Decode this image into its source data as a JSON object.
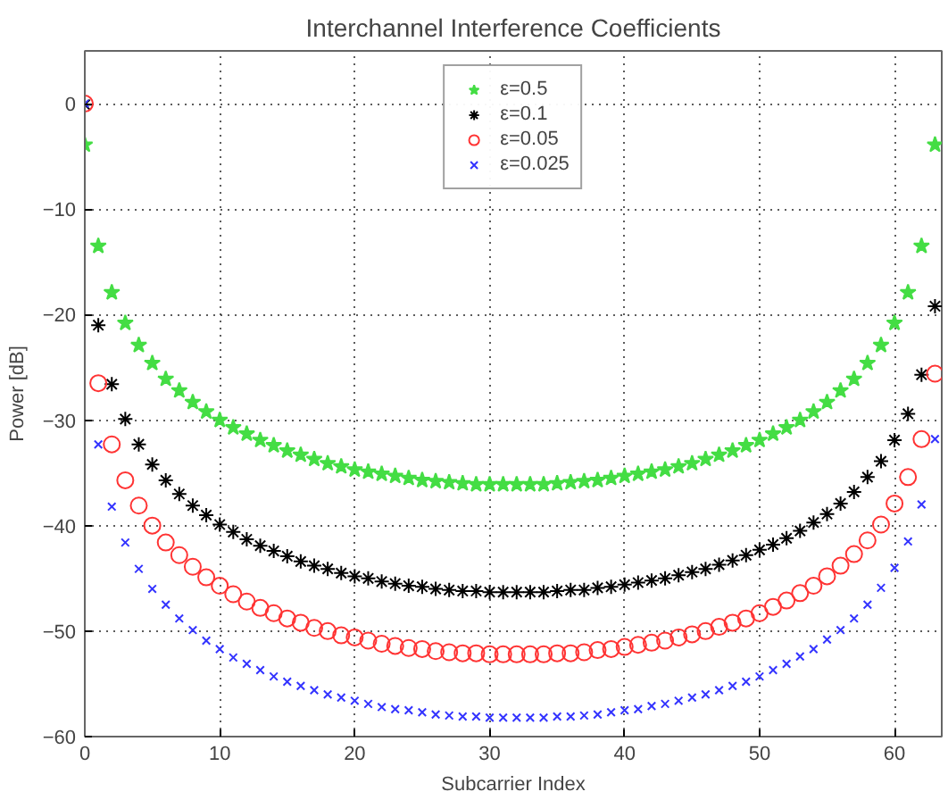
{
  "chart_data": {
    "type": "scatter",
    "title": "Interchannel Interference Coefficients",
    "xlabel": "Subcarrier Index",
    "ylabel": "Power [dB]",
    "x": [
      0,
      1,
      2,
      3,
      4,
      5,
      6,
      7,
      8,
      9,
      10,
      11,
      12,
      13,
      14,
      15,
      16,
      17,
      18,
      19,
      20,
      21,
      22,
      23,
      24,
      25,
      26,
      27,
      28,
      29,
      30,
      31,
      32,
      33,
      34,
      35,
      36,
      37,
      38,
      39,
      40,
      41,
      42,
      43,
      44,
      45,
      46,
      47,
      48,
      49,
      50,
      51,
      52,
      53,
      54,
      55,
      56,
      57,
      58,
      59,
      60,
      61,
      62,
      63
    ],
    "xlim": [
      0,
      63.5
    ],
    "xticks": [
      0,
      10,
      20,
      30,
      40,
      50,
      60
    ],
    "ylim": [
      -60,
      5
    ],
    "yticks": [
      -60,
      -50,
      -40,
      -30,
      -20,
      -10,
      0
    ],
    "grid": true,
    "legend": "top",
    "line_style": "dotted",
    "series": [
      {
        "name": "ε=0.5",
        "color": "#44dd44",
        "marker": "star",
        "values": [
          -3.9,
          -13.5,
          -17.9,
          -20.8,
          -22.9,
          -24.6,
          -26.1,
          -27.2,
          -28.3,
          -29.2,
          -30.0,
          -30.7,
          -31.3,
          -31.9,
          -32.4,
          -32.9,
          -33.3,
          -33.7,
          -34.1,
          -34.4,
          -34.7,
          -34.9,
          -35.1,
          -35.3,
          -35.5,
          -35.7,
          -35.8,
          -35.9,
          -36.0,
          -36.1,
          -36.1,
          -36.1,
          -36.1,
          -36.1,
          -36.1,
          -36.0,
          -35.9,
          -35.8,
          -35.7,
          -35.5,
          -35.3,
          -35.1,
          -34.9,
          -34.7,
          -34.4,
          -34.1,
          -33.7,
          -33.3,
          -32.9,
          -32.4,
          -31.9,
          -31.3,
          -30.7,
          -30.0,
          -29.2,
          -28.3,
          -27.2,
          -26.1,
          -24.6,
          -22.9,
          -20.8,
          -17.9,
          -13.5,
          -3.9
        ]
      },
      {
        "name": "ε=0.1",
        "color": "#000000",
        "marker": "cross",
        "values": [
          -0.1,
          -21.0,
          -26.6,
          -29.9,
          -32.3,
          -34.2,
          -35.7,
          -37.0,
          -38.1,
          -39.0,
          -39.9,
          -40.6,
          -41.3,
          -41.9,
          -42.4,
          -42.9,
          -43.4,
          -43.8,
          -44.1,
          -44.5,
          -44.8,
          -45.0,
          -45.3,
          -45.5,
          -45.7,
          -45.8,
          -46.0,
          -46.1,
          -46.2,
          -46.2,
          -46.3,
          -46.3,
          -46.3,
          -46.3,
          -46.3,
          -46.2,
          -46.1,
          -46.1,
          -45.9,
          -45.8,
          -45.6,
          -45.4,
          -45.2,
          -45.0,
          -44.7,
          -44.4,
          -44.1,
          -43.7,
          -43.3,
          -42.8,
          -42.3,
          -41.8,
          -41.2,
          -40.5,
          -39.7,
          -38.9,
          -37.9,
          -36.8,
          -35.4,
          -33.9,
          -31.9,
          -29.4,
          -25.7,
          -19.2
        ]
      },
      {
        "name": "ε=0.05",
        "color": "#ff3333",
        "marker": "circle",
        "values": [
          0.0,
          -26.5,
          -32.3,
          -35.7,
          -38.1,
          -40.0,
          -41.6,
          -42.8,
          -43.9,
          -44.9,
          -45.7,
          -46.5,
          -47.2,
          -47.8,
          -48.3,
          -48.8,
          -49.2,
          -49.7,
          -50.0,
          -50.4,
          -50.6,
          -50.9,
          -51.2,
          -51.4,
          -51.6,
          -51.7,
          -51.9,
          -52.0,
          -52.1,
          -52.1,
          -52.2,
          -52.2,
          -52.2,
          -52.2,
          -52.2,
          -52.1,
          -52.1,
          -52.0,
          -51.8,
          -51.7,
          -51.5,
          -51.3,
          -51.1,
          -50.9,
          -50.6,
          -50.3,
          -50.0,
          -49.6,
          -49.2,
          -48.8,
          -48.3,
          -47.7,
          -47.1,
          -46.4,
          -45.7,
          -44.8,
          -43.8,
          -42.7,
          -41.4,
          -39.9,
          -37.9,
          -35.4,
          -31.8,
          -25.6
        ]
      },
      {
        "name": "ε=0.025",
        "color": "#3333ff",
        "marker": "cross",
        "values": [
          0.0,
          -32.3,
          -38.2,
          -41.6,
          -44.1,
          -46.0,
          -47.5,
          -48.8,
          -49.9,
          -50.9,
          -51.7,
          -52.5,
          -53.1,
          -53.7,
          -54.3,
          -54.8,
          -55.2,
          -55.6,
          -56.0,
          -56.3,
          -56.6,
          -56.9,
          -57.2,
          -57.4,
          -57.5,
          -57.7,
          -57.9,
          -58.0,
          -58.1,
          -58.1,
          -58.2,
          -58.2,
          -58.2,
          -58.2,
          -58.2,
          -58.1,
          -58.1,
          -58.0,
          -57.9,
          -57.7,
          -57.5,
          -57.4,
          -57.1,
          -56.9,
          -56.6,
          -56.3,
          -56.0,
          -55.6,
          -55.2,
          -54.8,
          -54.3,
          -53.7,
          -53.1,
          -52.4,
          -51.7,
          -50.8,
          -49.9,
          -48.8,
          -47.5,
          -45.9,
          -44.0,
          -41.5,
          -38.0,
          -31.8
        ]
      }
    ]
  }
}
